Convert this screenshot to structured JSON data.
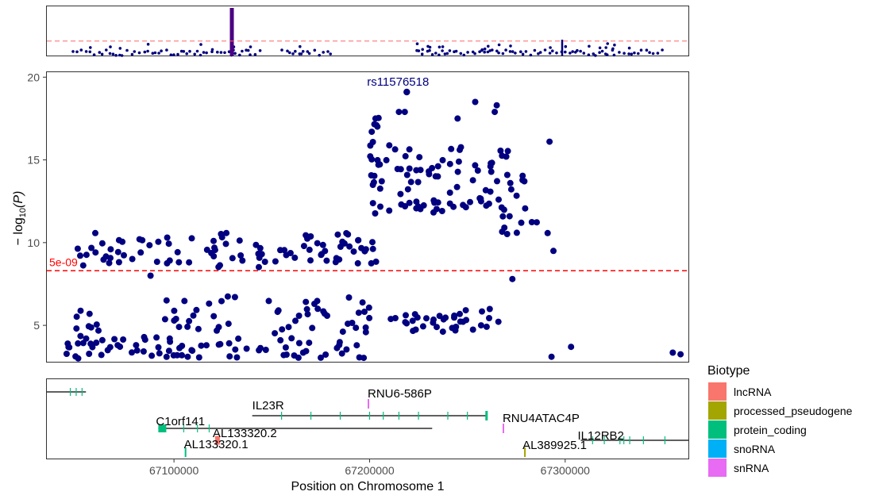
{
  "colors": {
    "point": "#000080",
    "threshold": "#ff0000",
    "lead_snp": "#4b0082",
    "axis_text": "#4d4d4d",
    "gene_line": "#000000"
  },
  "chart_data": [
    {
      "type": "scatter",
      "name": "overview-manhattan",
      "ylim": [
        3,
        21
      ],
      "xlim": [
        0,
        1
      ],
      "threshold_y": 8.3,
      "description_series": "overview of full region, lead locus near x=0.3"
    },
    {
      "type": "scatter",
      "name": "locus-zoom",
      "title": "",
      "xlabel": "Position on Chromosome 1",
      "ylabel": "-log10(P)",
      "ylabel_parts": {
        "prefix": "− log",
        "sub": "10",
        "suffix": "(P)"
      },
      "xlim": [
        67035000,
        67363000
      ],
      "ylim": [
        2.8,
        20.3
      ],
      "yticks": [
        5,
        10,
        15,
        20
      ],
      "xticks": [
        67100000,
        67200000,
        67300000
      ],
      "xtick_labels": [
        "67100000",
        "67200000",
        "67300000"
      ],
      "threshold": {
        "y": 8.3,
        "label": "5e-09"
      },
      "lead_snp": {
        "label": "rs11576518",
        "x": 67219000,
        "y": 19.1
      },
      "clusters": [
        {
          "x0": 67040000,
          "x1": 67200000,
          "y0": 3.0,
          "y1": 4.3,
          "n": 70,
          "seed": 11
        },
        {
          "x0": 67045000,
          "x1": 67075000,
          "y0": 3.4,
          "y1": 6.0,
          "n": 16,
          "seed": 12
        },
        {
          "x0": 67095000,
          "x1": 67200000,
          "y0": 4.5,
          "y1": 6.8,
          "n": 50,
          "seed": 13
        },
        {
          "x0": 67210000,
          "x1": 67270000,
          "y0": 4.6,
          "y1": 6.2,
          "n": 36,
          "seed": 14
        },
        {
          "x0": 67050000,
          "x1": 67205000,
          "y0": 8.5,
          "y1": 10.6,
          "n": 95,
          "seed": 15
        },
        {
          "x0": 67200000,
          "x1": 67207000,
          "y0": 11.7,
          "y1": 17.7,
          "n": 20,
          "seed": 16
        },
        {
          "x0": 67208000,
          "x1": 67280000,
          "y0": 11.8,
          "y1": 15.9,
          "n": 80,
          "seed": 17
        },
        {
          "x0": 67265000,
          "x1": 67292000,
          "y0": 10.5,
          "y1": 11.7,
          "n": 10,
          "seed": 18
        }
      ],
      "points": [
        [
          67215000,
          17.9
        ],
        [
          67218000,
          17.9
        ],
        [
          67203000,
          17.5
        ],
        [
          67203500,
          17.1
        ],
        [
          67245000,
          17.5
        ],
        [
          67254000,
          18.5
        ],
        [
          67265000,
          18.3
        ],
        [
          67264000,
          17.9
        ],
        [
          67292000,
          16.1
        ],
        [
          67257000,
          12.5
        ],
        [
          67266000,
          12.6
        ],
        [
          67294000,
          9.5
        ],
        [
          67088000,
          8.0
        ],
        [
          67273000,
          7.8
        ],
        [
          67303000,
          3.7
        ],
        [
          67293000,
          3.1
        ],
        [
          67355000,
          3.35
        ],
        [
          67359000,
          3.25
        ],
        [
          67107000,
          3.1
        ]
      ]
    },
    {
      "type": "table",
      "name": "gene-track",
      "genes": [
        {
          "name": "",
          "biotype": "protein_coding",
          "start": 67000000,
          "end": 67055000,
          "row": 1,
          "exons": [
            67047000,
            67050000,
            67053000
          ]
        },
        {
          "name": "RNU6-586P",
          "biotype": "snRNA",
          "start": 67199000,
          "end": 67199300,
          "row": 2
        },
        {
          "name": "IL23R",
          "biotype": "protein_coding",
          "start": 67140000,
          "end": 67260000,
          "row": 3,
          "exons": [
            67155000,
            67170000,
            67185000,
            67200000,
            67207000,
            67215000,
            67225000,
            67240000,
            67250000
          ]
        },
        {
          "name": "RNU4ATAC4P",
          "biotype": "snRNA",
          "start": 67268000,
          "end": 67268300,
          "row": 4
        },
        {
          "name": "C1orf141",
          "biotype": "protein_coding",
          "start": 67092000,
          "end": 67232000,
          "row": 4,
          "exons": [
            67105000,
            67112000,
            67118000
          ]
        },
        {
          "name": "AL133320.2",
          "biotype": "lncRNA",
          "start": 67121000,
          "end": 67124000,
          "row": 5
        },
        {
          "name": "IL12RB2",
          "biotype": "protein_coding",
          "start": 67308000,
          "end": 67420000,
          "row": 5,
          "exons": [
            67314000,
            67320000,
            67328000,
            67330000,
            67333000,
            67340000,
            67351000
          ]
        },
        {
          "name": "AL133320.1",
          "biotype": "protein_coding",
          "start": 67105500,
          "end": 67106000,
          "row": 6
        },
        {
          "name": "AL389925.1",
          "biotype": "processed_pseudogene",
          "start": 67279000,
          "end": 67280000,
          "row": 6
        }
      ]
    }
  ],
  "legend": {
    "title": "Biotype",
    "items": [
      {
        "label": "lncRNA",
        "color": "#f8766d"
      },
      {
        "label": "processed_pseudogene",
        "color": "#a3a500"
      },
      {
        "label": "protein_coding",
        "color": "#00bf7d"
      },
      {
        "label": "snoRNA",
        "color": "#00b0f6"
      },
      {
        "label": "snRNA",
        "color": "#e76bf3"
      }
    ]
  }
}
